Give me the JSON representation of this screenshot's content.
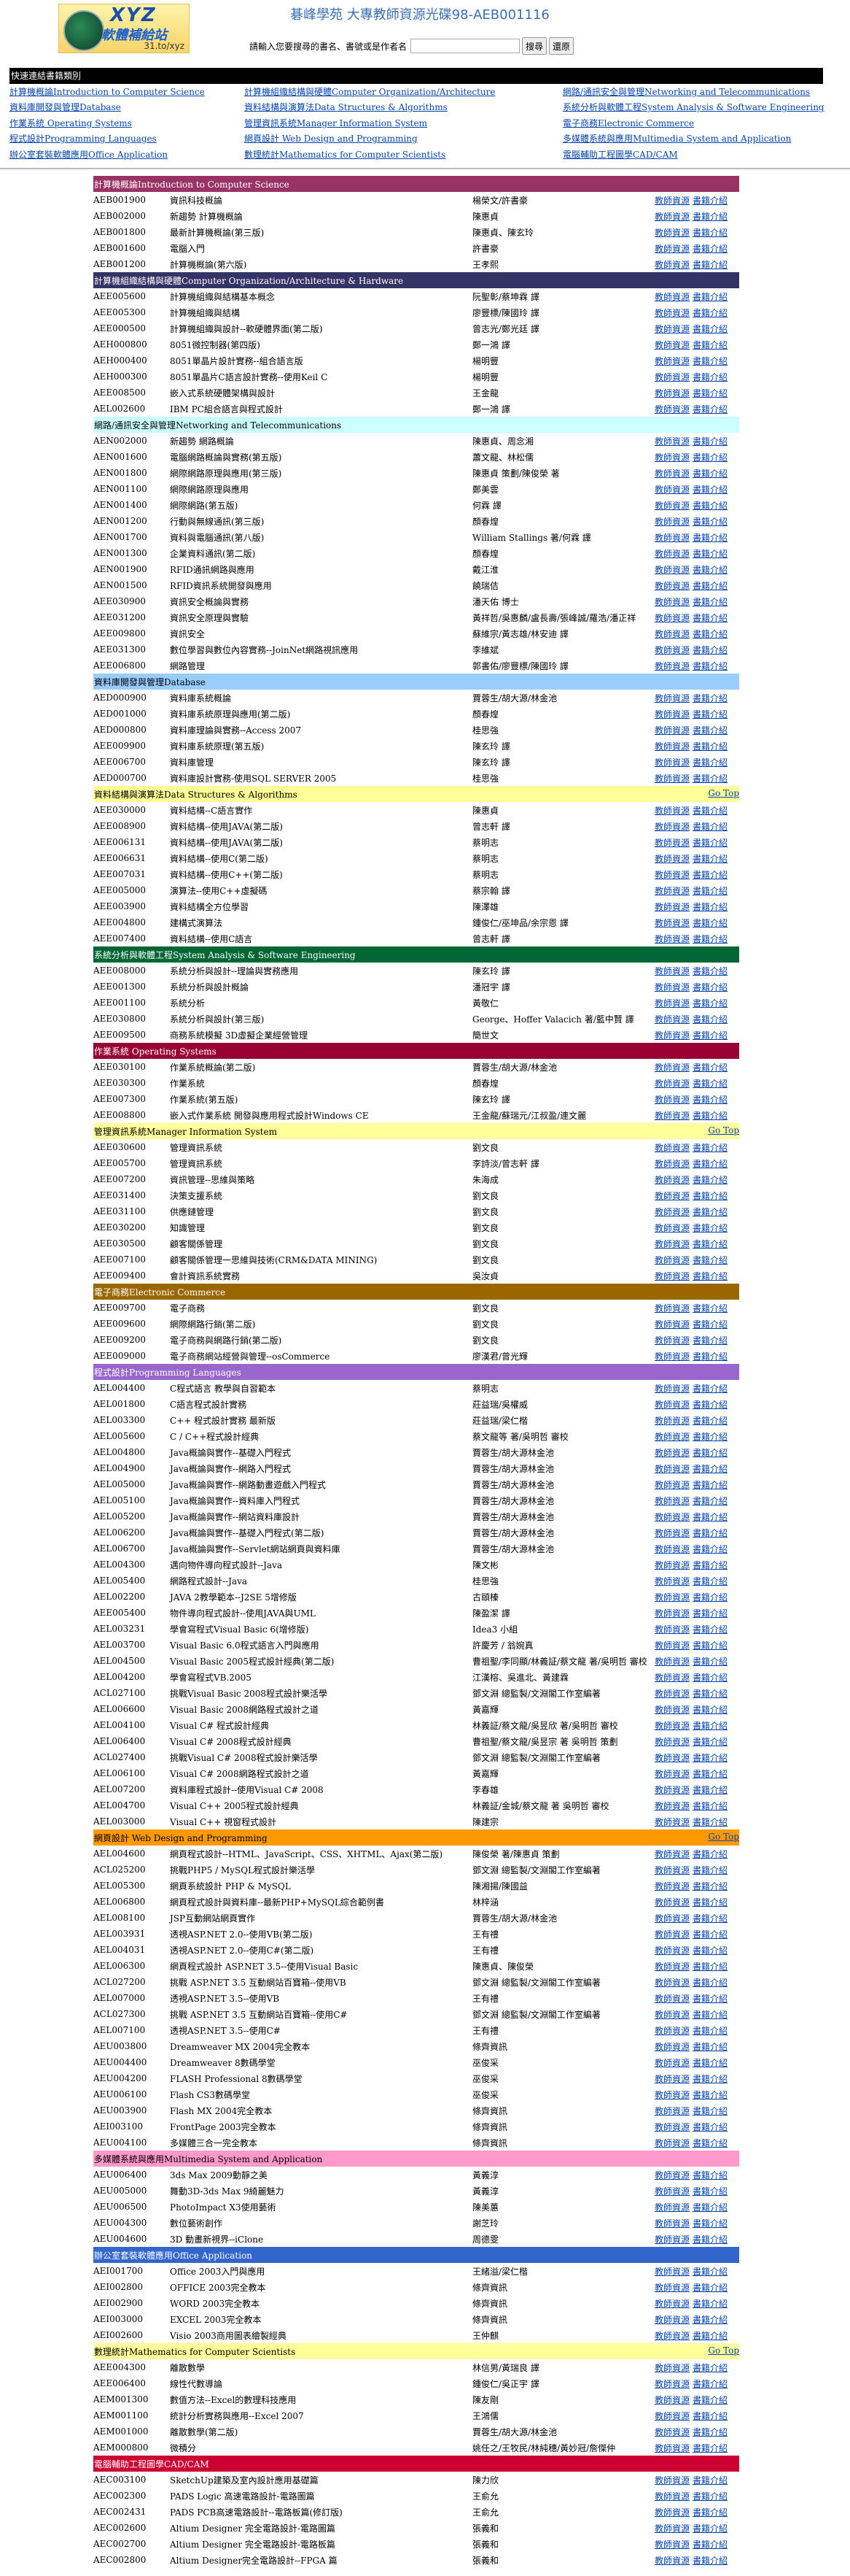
{
  "header": {
    "logo_text": "XYZ 軟體補給站 31.to/xyz",
    "site_title": "碁峰學苑 大專教師資源光碟98-AEB001116",
    "search_label": "請輸入您要搜尋的書名、書號或是作者名",
    "search_value": "",
    "search_button": "搜尋",
    "reset_button": "還原"
  },
  "quick": {
    "title": "快速連結書籍類別",
    "links": [
      "計算機概論Introduction to Computer Science",
      "計算機組織結構與硬體Computer Organization/Architecture",
      "網路/通訊安全與管理Networking and Telecommunications",
      "資料庫開發與管理Database",
      "資料結構與演算法Data Structures & Algorithms",
      "系統分析與軟體工程System Analysis & Software Engineering",
      "作業系統 Operating Systems",
      "管理資訊系統Manager Information System",
      "電子商務Electronic Commerce",
      "程式設計Programming Languages",
      "網頁設計 Web Design and Programming",
      "多媒體系統與應用Multimedia System and Application",
      "辦公室套裝軟體應用Office Application",
      "數理統計Mathematics for Computer Scientists",
      "電腦輔助工程圖學CAD/CAM"
    ]
  },
  "labels": {
    "teacher": "教師資源",
    "book": "書籍介紹",
    "gotop": "Go Top"
  },
  "sections": [
    {
      "title": "計算機概論Introduction to Computer Science",
      "bg": "#993366",
      "fg": "#ffffff",
      "gotop": false,
      "rows": [
        [
          "AEB001900",
          "資訊科技概論",
          "楊榮文/許書豪"
        ],
        [
          "AEB002000",
          "新趨勢 計算機概論",
          "陳惠貞"
        ],
        [
          "AEB001800",
          "最新計算機概論(第三版)",
          "陳惠貞、陳玄玲"
        ],
        [
          "AEB001600",
          "電腦入門",
          "許書豪"
        ],
        [
          "AEB001200",
          "計算機概論(第六版)",
          "王孝熙"
        ]
      ]
    },
    {
      "title": "計算機組織結構與硬體Computer Organization/Architecture & Hardware",
      "bg": "#333366",
      "fg": "#ffffff",
      "gotop": false,
      "rows": [
        [
          "AEE005600",
          "計算機組織與結構基本概念",
          "阮聖彰/蔡坤霖 譯"
        ],
        [
          "AEE005300",
          "計算機組織與結構",
          "廖豐標/陳國玲 譯"
        ],
        [
          "AEE000500",
          "計算機組織與設計--軟硬體界面(第二版)",
          "曾志光/鄭光廷 譯"
        ],
        [
          "AEH000800",
          "8051微控制器(第四版)",
          "鄭一鴻 譯"
        ],
        [
          "AEH000400",
          "8051單晶片設計實務--組合語言版",
          "楊明豐"
        ],
        [
          "AEH000300",
          "8051單晶片C語言設計實務--使用Keil C",
          "楊明豐"
        ],
        [
          "AEE008500",
          "嵌入式系統硬體架構與設計",
          "王金龍"
        ],
        [
          "AEL002600",
          "IBM PC組合語言與程式設計",
          "鄭一鴻 譯"
        ]
      ]
    },
    {
      "title": "網路/通訊安全與管理Networking and Telecommunications",
      "bg": "#CCFFFF",
      "fg": "#000000",
      "gotop": false,
      "rows": [
        [
          "AEN002000",
          "新趨勢 網路概論",
          "陳惠貞、周念湘"
        ],
        [
          "AEN001600",
          "電腦網路概論與實務(第五版)",
          "蕭文龍、林松儒"
        ],
        [
          "AEN001800",
          "網際網路原理與應用(第三版)",
          "陳惠貞 策劃/陳俊榮 著"
        ],
        [
          "AEN001100",
          "網際網路原理與應用",
          "鄭美雲"
        ],
        [
          "AEN001400",
          "網際網路(第五版)",
          "何霖 譯"
        ],
        [
          "AEN001200",
          "行動與無線通訊(第三版)",
          "顏春煌"
        ],
        [
          "AEN001700",
          "資料與電腦通訊(第八版)",
          "William Stallings 著/何霖 譯"
        ],
        [
          "AEN001300",
          "企業資料通訊(第二版)",
          "顏春煌"
        ],
        [
          "AEN001900",
          "RFID通訊網路與應用",
          "戴江淮"
        ],
        [
          "AEN001500",
          "RFID資訊系統開發與應用",
          "饒瑞佶"
        ],
        [
          "AEE030900",
          "資訊安全概論與實務",
          "潘天佑 博士"
        ],
        [
          "AEE031200",
          "資訊安全原理與實驗",
          "黃祥哲/吳惠麟/盧長壽/張峰誠/羅浩/潘正祥"
        ],
        [
          "AEE009800",
          "資訊安全",
          "蘇維宗/黃志雄/林安迪 譯"
        ],
        [
          "AEE031300",
          "數位學習與數位內容實務--JoinNet網路視訊應用",
          "李維斌"
        ],
        [
          "AEE006800",
          "網路管理",
          "郭書佑/廖豐標/陳國玲 譯"
        ]
      ]
    },
    {
      "title": "資料庫開發與管理Database",
      "bg": "#99CCFF",
      "fg": "#000000",
      "gotop": false,
      "rows": [
        [
          "AED000900",
          "資料庫系統概論",
          "賈蓉生/胡大源/林金池"
        ],
        [
          "AED001000",
          "資料庫系統原理與應用(第二版)",
          "顏春煌"
        ],
        [
          "AED000800",
          "資料庫理論與實務--Access 2007",
          "桂思強"
        ],
        [
          "AEE009900",
          "資料庫系統原理(第五版)",
          "陳玄玲 譯"
        ],
        [
          "AEE006700",
          "資料庫管理",
          "陳玄玲 譯"
        ],
        [
          "AED000700",
          "資料庫設計實務-使用SQL SERVER 2005",
          "桂思強"
        ]
      ]
    },
    {
      "title": "資料結構與演算法Data Structures & Algorithms",
      "bg": "#FFFF99",
      "fg": "#000000",
      "gotop": true,
      "rows": [
        [
          "AEE030000",
          "資料結構--C語言實作",
          "陳惠貞"
        ],
        [
          "AEE008900",
          "資料結構--使用JAVA(第二版)",
          "曾志軒 譯"
        ],
        [
          "AEE006131",
          "資料結構--使用JAVA(第二版)",
          "蔡明志"
        ],
        [
          "AEE006631",
          "資料結構--使用C(第二版)",
          "蔡明志"
        ],
        [
          "AEE007031",
          "資料結構--使用C++(第二版)",
          "蔡明志"
        ],
        [
          "AEE005000",
          "演算法--使用C++虛擬碼",
          "蔡宗翰 譯"
        ],
        [
          "AEE003900",
          "資料結構全方位學習",
          "陳澤雄"
        ],
        [
          "AEE004800",
          "建構式演算法",
          "鍾俊仁/巫坤品/余宗恩 譯"
        ],
        [
          "AEE007400",
          "資料結構--使用C語言",
          "曾志軒 譯"
        ]
      ]
    },
    {
      "title": "系統分析與軟體工程System Analysis & Software Engineering",
      "bg": "#006633",
      "fg": "#ffffff",
      "gotop": false,
      "rows": [
        [
          "AEE008000",
          "系統分析與設計--理論與實務應用",
          "陳玄玲 譯"
        ],
        [
          "AEE001300",
          "系統分析與設計概論",
          "潘冠宇 譯"
        ],
        [
          "AEE001100",
          "系統分析",
          "黃敬仁"
        ],
        [
          "AEE030800",
          "系統分析與設計(第三版)",
          "George、Hoffer Valacich 著/藍中賢 譯"
        ],
        [
          "AEE009500",
          "商務系統模擬 3D虛擬企業經營管理",
          "簡世文"
        ]
      ]
    },
    {
      "title": "作業系統 Operating Systems",
      "bg": "#990033",
      "fg": "#ffffff",
      "gotop": false,
      "rows": [
        [
          "AEE030100",
          "作業系統概論(第二版)",
          "賈蓉生/胡大源/林金池"
        ],
        [
          "AEE030300",
          "作業系統",
          "顏春煌"
        ],
        [
          "AEE007300",
          "作業系統(第五版)",
          "陳玄玲 譯"
        ],
        [
          "AEE008800",
          "嵌入式作業系統 開發與應用程式設計Windows CE",
          "王金龍/蘇瑞元/江叔盈/連文麗"
        ]
      ]
    },
    {
      "title": "管理資訊系統Manager Information System",
      "bg": "#FFFF99",
      "fg": "#000000",
      "gotop": true,
      "rows": [
        [
          "AEE030600",
          "管理資訊系統",
          "劉文良"
        ],
        [
          "AEE005700",
          "管理資訊系統",
          "李詩淡/曾志軒 譯"
        ],
        [
          "AEE007200",
          "資訊管理--思維與策略",
          "朱海成"
        ],
        [
          "AEE031400",
          "決策支援系統",
          "劉文良"
        ],
        [
          "AEE031100",
          "供應鏈管理",
          "劉文良"
        ],
        [
          "AEE030200",
          "知識管理",
          "劉文良"
        ],
        [
          "AEE030500",
          "顧客關係管理",
          "劉文良"
        ],
        [
          "AEE007100",
          "顧客關係管理一思維與技術(CRM&DATA MINING)",
          "劉文良"
        ],
        [
          "AEE009400",
          "會計資訊系統實務",
          "吳汝貞"
        ]
      ]
    },
    {
      "title": "電子商務Electronic Commerce",
      "bg": "#996600",
      "fg": "#ffffff",
      "gotop": false,
      "rows": [
        [
          "AEE009700",
          "電子商務",
          "劉文良"
        ],
        [
          "AEE009600",
          "網際網路行銷(第二版)",
          "劉文良"
        ],
        [
          "AEE009200",
          "電子商務與網路行銷(第二版)",
          "劉文良"
        ],
        [
          "AEE009000",
          "電子商務網站經營與管理--osCommerce",
          "廖漢君/曾光輝"
        ]
      ]
    },
    {
      "title": "程式設計Programming Languages",
      "bg": "#9966CC",
      "fg": "#ffffff",
      "gotop": false,
      "rows": [
        [
          "AEL004400",
          "C程式語言 教學與自習範本",
          "蔡明志"
        ],
        [
          "AEL001800",
          "C語言程式設計實務",
          "莊益瑞/吳權威"
        ],
        [
          "AEL003300",
          "C++ 程式設計實務 最新版",
          "莊益瑞/梁仁楷"
        ],
        [
          "AEL005600",
          "C / C++程式設計經典",
          "蔡文龍等 著/吳明哲 審校"
        ],
        [
          "AEL004800",
          "Java概論與實作--基礎入門程式",
          "賈蓉生/胡大源林金池"
        ],
        [
          "AEL004900",
          "Java概論與實作--網路入門程式",
          "賈蓉生/胡大源林金池"
        ],
        [
          "AEL005000",
          "Java概論與實作--網路動畫遊戲入門程式",
          "賈蓉生/胡大源林金池"
        ],
        [
          "AEL005100",
          "Java概論與實作--資料庫入門程式",
          "賈蓉生/胡大源林金池"
        ],
        [
          "AEL005200",
          "Java概論與實作--網站資料庫設計",
          "賈蓉生/胡大源林金池"
        ],
        [
          "AEL006200",
          "Java概論與實作--基礎入門程式(第二版)",
          "賈蓉生/胡大源林金池"
        ],
        [
          "AEL006700",
          "Java概論與實作--Servlet網站網頁與資料庫",
          "賈蓉生/胡大源林金池"
        ],
        [
          "AEL004300",
          "邁向物件導向程式設計--Java",
          "陳文彬"
        ],
        [
          "AEL005400",
          "網路程式設計--Java",
          "桂思強"
        ],
        [
          "AEL002200",
          "JAVA 2教學範本--J2SE 5增修版",
          "古頤榛"
        ],
        [
          "AEE005400",
          "物件導向程式設計--使用JAVA與UML",
          "陳盈潔 譯"
        ],
        [
          "AEL003231",
          "學會寫程式Visual Basic 6(增修版)",
          "Idea3 小組"
        ],
        [
          "AEL003700",
          "Visual Basic 6.0程式語言入門與應用",
          "許慶芳 / 翁婉真"
        ],
        [
          "AEL004500",
          "Visual Basic 2005程式設計經典(第二版)",
          "曹祖聖/李同顯/林義証/蔡文龍 著/吳明哲 審校"
        ],
        [
          "AEL004200",
          "學會寫程式VB.2005",
          "江漢榕、吳進北、黃建霖"
        ],
        [
          "ACL027100",
          "挑戰Visual Basic 2008程式設計樂活學",
          "鄧文淵 總監製/文淵閣工作室編著"
        ],
        [
          "AEL006600",
          "Visual Basic 2008網路程式設計之道",
          "黃嘉輝"
        ],
        [
          "AEL004100",
          "Visual C# 程式設計經典",
          "林義証/蔡文龍/吳昱欣 著/吳明哲 審校"
        ],
        [
          "AEL006400",
          "Visual C# 2008程式設計經典",
          "曹祖聖/蔡文龍/吳昱宗 著 吳明哲 策劃"
        ],
        [
          "ACL027400",
          "挑戰Visual C# 2008程式設計樂活學",
          "鄧文淵 總監製/文淵閣工作室編著"
        ],
        [
          "AEL006100",
          "Visual C# 2008網路程式設計之道",
          "黃嘉輝"
        ],
        [
          "AEL007200",
          "資料庫程式設計--使用Visual C# 2008",
          "李春雄"
        ],
        [
          "AEL004700",
          "Visual C++ 2005程式設計經典",
          "林義証/金城/蔡文龍 著 吳明哲 審校"
        ],
        [
          "AEL003000",
          "Visual C++ 視窗程式設計",
          "陳建宗"
        ]
      ]
    },
    {
      "title": "網頁設計 Web Design and Programming",
      "bg": "#FF9900",
      "fg": "#000000",
      "gotop": true,
      "rows": [
        [
          "AEL004600",
          "網頁程式設計--HTML、JavaScript、CSS、XHTML、Ajax(第二版)",
          "陳俊榮 著/陳惠貞 策劃"
        ],
        [
          "ACL025200",
          "挑戰PHP5 / MySQL程式設計樂活學",
          "鄧文淵 總監製/文淵閣工作室編著"
        ],
        [
          "AEL005300",
          "網頁系統設計 PHP & MySQL",
          "陳湘揚/陳國益"
        ],
        [
          "AEL006800",
          "網頁程式設計與資料庫--最新PHP+MySQL綜合範例書",
          "林梓涵"
        ],
        [
          "AEL008100",
          "JSP互動網站網頁實作",
          "賈蓉生/胡大源/林金池"
        ],
        [
          "AEL003931",
          "透視ASP.NET 2.0--使用VB(第二版)",
          "王有禮"
        ],
        [
          "AEL004031",
          "透視ASP.NET 2.0--使用C#(第二版)",
          "王有禮"
        ],
        [
          "AEL006300",
          "網頁程式設計 ASP.NET 3.5--使用Visual Basic",
          "陳惠貞、陳俊榮"
        ],
        [
          "ACL027200",
          "挑戰 ASP.NET 3.5 互動網站百寶箱--使用VB",
          "鄧文淵 總監製/文淵閣工作室編著"
        ],
        [
          "AEL007000",
          "透視ASP.NET 3.5--使用VB",
          "王有禮"
        ],
        [
          "ACL027300",
          "挑戰 ASP.NET 3.5 互動網站百寶箱--使用C#",
          "鄧文淵 總監製/文淵閣工作室編著"
        ],
        [
          "AEL007100",
          "透視ASP.NET 3.5--使用C#",
          "王有禮"
        ],
        [
          "AEU003800",
          "Dreamweaver MX 2004完全教本",
          "條齊資訊"
        ],
        [
          "AEU004400",
          "Dreamweaver 8數碼學堂",
          "巫俊采"
        ],
        [
          "AEU004200",
          "FLASH Professional 8數碼學堂",
          "巫俊采"
        ],
        [
          "AEU006100",
          "Flash CS3數碼學堂",
          "巫俊采"
        ],
        [
          "AEU003900",
          "Flash MX 2004完全教本",
          "條齊資訊"
        ],
        [
          "AEI003100",
          "FrontPage 2003完全教本",
          "條齊資訊"
        ],
        [
          "AEU004100",
          "多媒體三合一完全教本",
          "條齊資訊"
        ]
      ]
    },
    {
      "title": "多媒體系統與應用Multimedia System and Application",
      "bg": "#FF99CC",
      "fg": "#000000",
      "gotop": false,
      "rows": [
        [
          "AEU006400",
          "3ds Max 2009動靜之美",
          "黃義淳"
        ],
        [
          "AEU005000",
          "舞動3D-3ds Max 9綺麗魅力",
          "黃義淳"
        ],
        [
          "AEU006500",
          "PhotoImpact X3使用藝術",
          "陳美蕙"
        ],
        [
          "AEU004300",
          "數位藝術創作",
          "謝芝玲"
        ],
        [
          "AEU004600",
          "3D 動畫新視界--iClone",
          "周德雯"
        ]
      ]
    },
    {
      "title": "辦公室套裝軟體應用Office Application",
      "bg": "#3366CC",
      "fg": "#ffffff",
      "gotop": false,
      "rows": [
        [
          "AEI001700",
          "Office 2003入門與應用",
          "王緒溢/梁仁楷"
        ],
        [
          "AEI002800",
          "OFFICE 2003完全教本",
          "條齊資訊"
        ],
        [
          "AEI002900",
          "WORD 2003完全教本",
          "條齊資訊"
        ],
        [
          "AEI003000",
          "EXCEL 2003完全教本",
          "條齊資訊"
        ],
        [
          "AEI002600",
          "Visio 2003商用圖表繪製經典",
          "王仲麒"
        ]
      ]
    },
    {
      "title": "數理統計Mathematics for Computer Scientists",
      "bg": "#FFFF99",
      "fg": "#000000",
      "gotop": true,
      "rows": [
        [
          "AEE004300",
          "離散數學",
          "林信男/黃瑞良 譯"
        ],
        [
          "AEE006400",
          "線性代數導論",
          "鍾俊仁/吳正宇 譯"
        ],
        [
          "AEM001300",
          "數值方法--Excel的數理科技應用",
          "陳友剛"
        ],
        [
          "AEM001100",
          "統計分析實務與應用--Excel 2007",
          "王鴻儒"
        ],
        [
          "AEM001000",
          "離散數學(第二版)",
          "賈蓉生/胡大源/林金池"
        ],
        [
          "AEM000800",
          "微積分",
          "姚任之/王牧民/林純穗/黃妙冠/詹傑仲"
        ]
      ]
    },
    {
      "title": "電腦輔助工程圖學CAD/CAM",
      "bg": "#CC0033",
      "fg": "#ffffff",
      "gotop": false,
      "rows": [
        [
          "AEC003100",
          "SketchUp建築及室內設計應用基礎篇",
          "陳力欣"
        ],
        [
          "AEC002300",
          "PADS Logic 高速電路設計-電路圖篇",
          "王俞允"
        ],
        [
          "AEC002431",
          "PADS PCB高速電路設計--電路板篇(修訂版)",
          "王俞允"
        ],
        [
          "AEC002600",
          "Altium Designer 完全電路設計-電路圖篇",
          "張義和"
        ],
        [
          "AEC002700",
          "Altium Designer 完全電路設計-電路板篇",
          "張義和"
        ],
        [
          "AEC002800",
          "Altium Designer完全電路設計--FPGA 篇",
          "張義和"
        ]
      ]
    }
  ]
}
